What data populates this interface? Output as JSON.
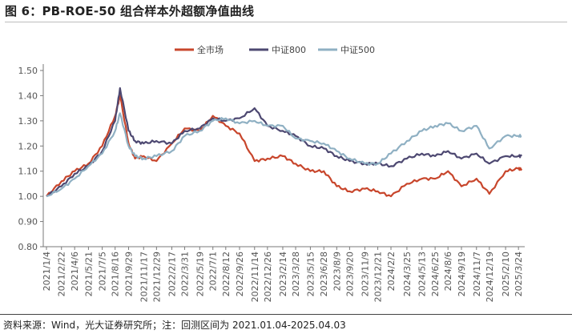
{
  "header": {
    "title": "图 6：PB-ROE-50 组合样本外超额净值曲线"
  },
  "footer": {
    "source": "资料来源：Wind，光大证券研究所；注：回测区间为 2021.01.04-2025.04.03"
  },
  "chart_data": {
    "type": "line",
    "title": "图 6：PB-ROE-50 组合样本外超额净值曲线",
    "xlabel": "",
    "ylabel": "",
    "ylim": [
      0.8,
      1.5
    ],
    "yticks": [
      "0.80",
      "0.90",
      "1.00",
      "1.10",
      "1.20",
      "1.30",
      "1.40",
      "1.50"
    ],
    "grid": false,
    "legend_position": "top-center",
    "x_tick_labels": [
      "2021/1/4",
      "2021/2/22",
      "2021/4/6",
      "2021/5/21",
      "2021/7/5",
      "2021/8/16",
      "2021/9/29",
      "2021/11/17",
      "2021/12/29",
      "2022/2/17",
      "2022/3/31",
      "2022/5/19",
      "2022/7/1",
      "2022/8/12",
      "2022/9/26",
      "2022/11/14",
      "2022/12/26",
      "2023/2/14",
      "2023/3/28",
      "2023/5/15",
      "2023/6/28",
      "2023/8/9",
      "2023/9/20",
      "2023/11/9",
      "2023/12/21",
      "2024/2/2",
      "2024/3/25",
      "2024/5/13",
      "2024/6/25",
      "2024/8/6",
      "2024/9/19",
      "2024/11/7",
      "2024/12/19",
      "2025/2/10",
      "2025/3/24"
    ],
    "x": [
      "2021/1/4",
      "2021/2/22",
      "2021/4/6",
      "2021/5/21",
      "2021/7/5",
      "2021/8/16",
      "2021/9/1",
      "2021/9/29",
      "2021/10/20",
      "2021/11/17",
      "2021/12/29",
      "2022/2/17",
      "2022/3/31",
      "2022/5/19",
      "2022/7/1",
      "2022/8/12",
      "2022/9/26",
      "2022/11/14",
      "2022/12/26",
      "2023/2/14",
      "2023/3/28",
      "2023/5/15",
      "2023/6/28",
      "2023/8/9",
      "2023/9/20",
      "2023/11/9",
      "2023/12/21",
      "2024/2/2",
      "2024/3/25",
      "2024/5/13",
      "2024/6/25",
      "2024/8/6",
      "2024/9/19",
      "2024/11/7",
      "2024/12/19",
      "2025/2/10",
      "2025/3/24",
      "2025/4/3"
    ],
    "series": [
      {
        "name": "全市场",
        "color": "#c8462c",
        "values": [
          1.0,
          1.06,
          1.1,
          1.13,
          1.2,
          1.32,
          1.4,
          1.21,
          1.15,
          1.16,
          1.14,
          1.21,
          1.27,
          1.26,
          1.32,
          1.28,
          1.25,
          1.14,
          1.15,
          1.16,
          1.13,
          1.1,
          1.1,
          1.04,
          1.02,
          1.03,
          1.02,
          1.0,
          1.05,
          1.07,
          1.07,
          1.1,
          1.04,
          1.07,
          1.01,
          1.1,
          1.11,
          1.11
        ]
      },
      {
        "name": "中证800",
        "color": "#4d4871",
        "values": [
          1.0,
          1.04,
          1.09,
          1.12,
          1.18,
          1.3,
          1.43,
          1.26,
          1.22,
          1.21,
          1.22,
          1.21,
          1.26,
          1.27,
          1.31,
          1.3,
          1.31,
          1.35,
          1.28,
          1.26,
          1.24,
          1.2,
          1.19,
          1.16,
          1.14,
          1.13,
          1.13,
          1.12,
          1.15,
          1.17,
          1.16,
          1.18,
          1.15,
          1.17,
          1.13,
          1.16,
          1.16,
          1.16
        ]
      },
      {
        "name": "中证500",
        "color": "#8fb0c3",
        "values": [
          1.0,
          1.03,
          1.07,
          1.12,
          1.17,
          1.26,
          1.33,
          1.2,
          1.16,
          1.15,
          1.16,
          1.18,
          1.24,
          1.26,
          1.3,
          1.31,
          1.29,
          1.3,
          1.28,
          1.28,
          1.23,
          1.22,
          1.21,
          1.18,
          1.15,
          1.13,
          1.13,
          1.17,
          1.22,
          1.26,
          1.28,
          1.29,
          1.26,
          1.28,
          1.19,
          1.24,
          1.24,
          1.24
        ]
      }
    ]
  }
}
